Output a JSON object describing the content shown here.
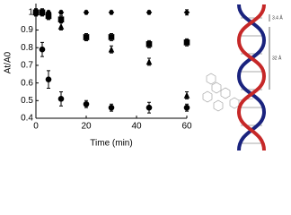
{
  "chart_data": {
    "type": "scatter",
    "x_label": "Time (min)",
    "y_label": "At/A0",
    "x": [
      0,
      2.5,
      5,
      10,
      20,
      30,
      45,
      60
    ],
    "series": [
      {
        "marker": "diamond",
        "color": "#000000",
        "values": [
          1.0,
          1.0,
          1.0,
          1.0,
          1.0,
          1.0,
          1.0,
          1.0
        ],
        "errors": [
          0.01,
          0.01,
          0.01,
          0.01,
          0.01,
          0.01,
          0.01,
          0.015
        ]
      },
      {
        "marker": "square",
        "color": "#000000",
        "values": [
          1.0,
          1.0,
          0.98,
          0.96,
          0.86,
          0.86,
          0.82,
          0.83
        ],
        "errors": [
          0.02,
          0.02,
          0.02,
          0.02,
          0.02,
          0.02,
          0.02,
          0.02
        ]
      },
      {
        "marker": "triangle",
        "color": "#000000",
        "values": [
          1.0,
          1.0,
          0.98,
          0.92,
          0.86,
          0.79,
          0.72,
          0.53
        ],
        "errors": [
          0.02,
          0.02,
          0.02,
          0.02,
          0.02,
          0.02,
          0.02,
          0.02
        ]
      },
      {
        "marker": "circle",
        "color": "#000000",
        "values": [
          1.0,
          0.79,
          0.62,
          0.51,
          0.48,
          0.46,
          0.46,
          0.46
        ],
        "errors": [
          0.02,
          0.04,
          0.05,
          0.04,
          0.02,
          0.02,
          0.03,
          0.02
        ]
      }
    ],
    "xlim": [
      0,
      60
    ],
    "xticks": [
      0,
      20,
      40,
      60
    ],
    "ylim": [
      0.4,
      1.05
    ],
    "yticks": [
      0.4,
      0.5,
      0.6,
      0.7,
      0.8,
      0.9,
      1
    ],
    "grid": false
  },
  "illustration": {
    "pitch_label": "3.4 Å",
    "turn_label": "32 Å"
  }
}
